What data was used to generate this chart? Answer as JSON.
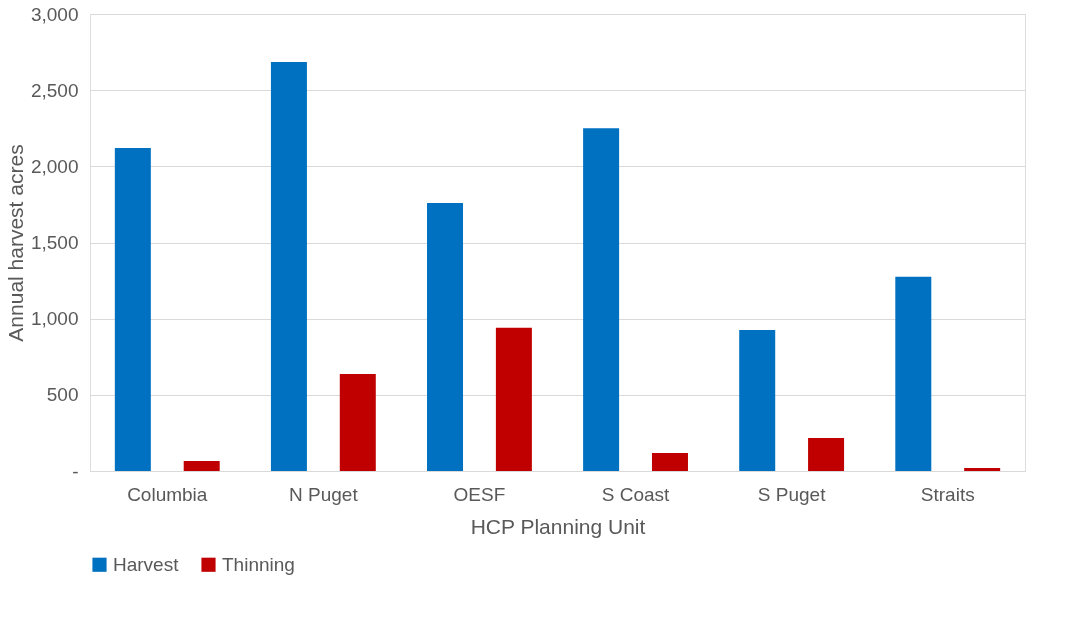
{
  "chart_data": {
    "type": "bar",
    "xlabel": "HCP Planning Unit",
    "ylabel": "Annual harvest acres",
    "categories": [
      "Columbia",
      "N Puget",
      "OESF",
      "S Coast",
      "S Puget",
      "Straits"
    ],
    "series": [
      {
        "name": "Harvest",
        "color": "#0070c0",
        "values": [
          2120,
          2685,
          1760,
          2250,
          925,
          1275
        ]
      },
      {
        "name": "Thinning",
        "color": "#c00000",
        "values": [
          65,
          637,
          940,
          118,
          217,
          20
        ]
      }
    ],
    "ylim": [
      0,
      3000
    ],
    "yticks": [
      {
        "value": 0,
        "label": "-"
      },
      {
        "value": 500,
        "label": "500"
      },
      {
        "value": 1000,
        "label": "1,000"
      },
      {
        "value": 1500,
        "label": "1,500"
      },
      {
        "value": 2000,
        "label": "2,000"
      },
      {
        "value": 2500,
        "label": "2,500"
      },
      {
        "value": 3000,
        "label": "3,000"
      }
    ],
    "grid": "y",
    "legend": "bottom"
  }
}
